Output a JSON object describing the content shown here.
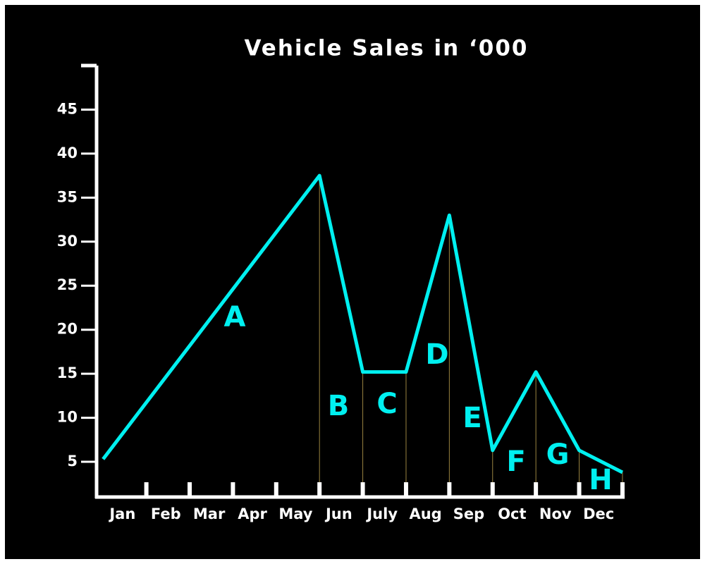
{
  "chart_data": {
    "type": "line",
    "title": "Vehicle Sales in ‘000",
    "categories": [
      "Jan",
      "Feb",
      "Mar",
      "Apr",
      "May",
      "Jun",
      "July",
      "Aug",
      "Sep",
      "Oct",
      "Nov",
      "Dec"
    ],
    "x": [
      0,
      5,
      6,
      7,
      8,
      9,
      10,
      11,
      12
    ],
    "values": [
      5.3,
      37.5,
      15.2,
      15.2,
      33,
      6.3,
      15.2,
      6.3,
      3.8
    ],
    "color": "#00f0f0",
    "annotations": [
      "A",
      "B",
      "C",
      "D",
      "E",
      "F",
      "G",
      "H"
    ],
    "xlim": [
      -0.15,
      12.05
    ],
    "xticks": [
      1,
      2,
      3,
      4,
      5,
      6,
      7,
      8,
      9,
      10,
      11,
      12
    ],
    "ylim": [
      1,
      50
    ],
    "yticks": [
      5,
      10,
      15,
      20,
      25,
      30,
      35,
      40,
      45
    ]
  }
}
